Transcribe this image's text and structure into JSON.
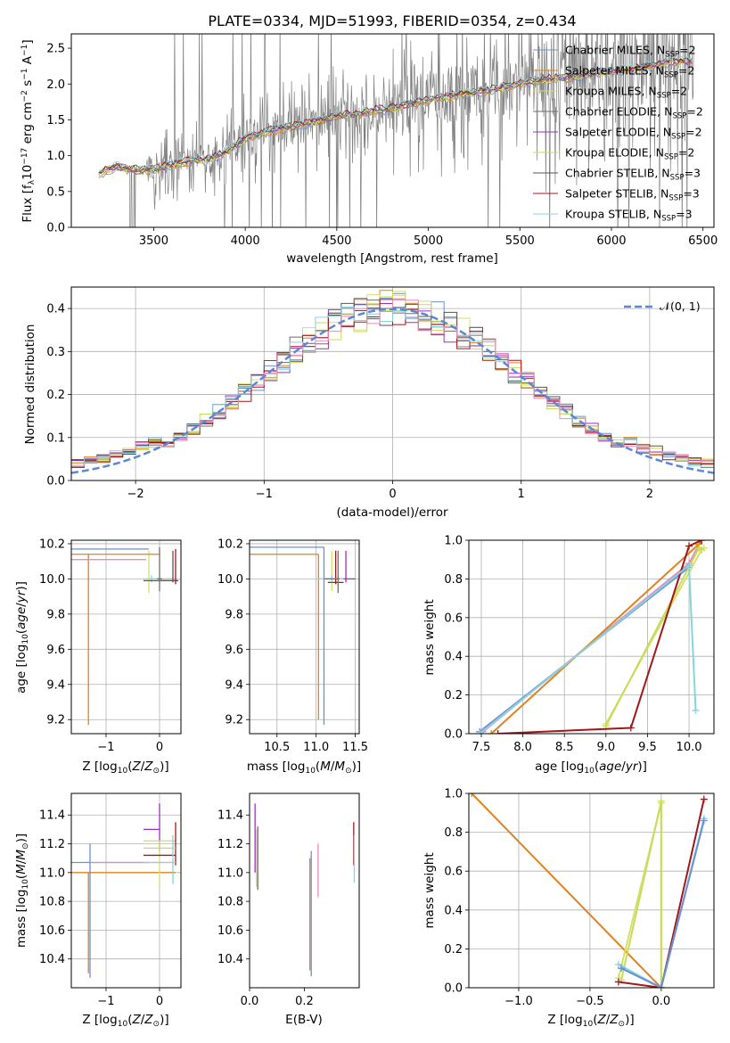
{
  "figure": {
    "title": "PLATE=0334, MJD=51993, FIBERID=0354, z=0.434"
  },
  "colors": {
    "Chabrier MILES": "#6a8fd8",
    "Salpeter MILES": "#e0821f",
    "Kroupa MILES": "#d4e06b",
    "Chabrier ELODIE": "#6e6e6e",
    "Salpeter ELODIE": "#9b30c0",
    "Kroupa ELODIE": "#c7dc58",
    "Chabrier STELIB": "#555555",
    "Salpeter STELIB": "#a01818",
    "Kroupa STELIB": "#86d4dc",
    "pink": "#e889c0",
    "data": "#7f7f7f",
    "gauss": "#5b87d6"
  },
  "chart_data": [
    {
      "id": "spectrum",
      "type": "line",
      "xlabel": "wavelength [Angstrom, rest frame]",
      "ylabel": "Flux [f_λ 10^-17 erg cm^-2 s^-1 A^-1]",
      "xlim": [
        3050,
        6560
      ],
      "ylim": [
        0,
        2.7
      ],
      "xticks": [
        3500,
        4000,
        4500,
        5000,
        5500,
        6000,
        6500
      ],
      "yticks": [
        0.0,
        0.5,
        1.0,
        1.5,
        2.0,
        2.5
      ],
      "legend_position": "top-right",
      "grid": false,
      "continuum": {
        "x": [
          3200,
          3300,
          3400,
          3500,
          3600,
          3700,
          3800,
          3900,
          4000,
          4100,
          4200,
          4300,
          4400,
          4500,
          4600,
          4700,
          4800,
          4900,
          5000,
          5100,
          5200,
          5300,
          5400,
          5500,
          5600,
          5700,
          5800,
          5900,
          6000,
          6100,
          6200,
          6300,
          6450
        ],
        "y": [
          0.75,
          0.85,
          0.8,
          0.8,
          0.88,
          0.92,
          0.95,
          1.05,
          1.25,
          1.32,
          1.38,
          1.43,
          1.48,
          1.55,
          1.58,
          1.63,
          1.66,
          1.72,
          1.78,
          1.82,
          1.87,
          1.9,
          1.95,
          2.0,
          2.05,
          2.08,
          2.1,
          2.15,
          2.18,
          2.2,
          2.25,
          2.3,
          2.32
        ]
      },
      "series": [
        {
          "name": "Chabrier MILES, N_SSP=2",
          "label_main": "Chabrier MILES, N",
          "sub": "SSP",
          "tail": "=2"
        },
        {
          "name": "Salpeter MILES, N_SSP=2",
          "label_main": "Salpeter MILES, N",
          "sub": "SSP",
          "tail": "=2"
        },
        {
          "name": "Kroupa MILES, N_SSP=2",
          "label_main": "Kroupa MILES, N",
          "sub": "SSP",
          "tail": "=2"
        },
        {
          "name": "Chabrier ELODIE, N_SSP=2",
          "label_main": "Chabrier ELODIE, N",
          "sub": "SSP",
          "tail": "=2"
        },
        {
          "name": "Salpeter ELODIE, N_SSP=2",
          "label_main": "Salpeter ELODIE, N",
          "sub": "SSP",
          "tail": "=2"
        },
        {
          "name": "Kroupa ELODIE, N_SSP=2",
          "label_main": "Kroupa ELODIE, N",
          "sub": "SSP",
          "tail": "=2"
        },
        {
          "name": "Chabrier STELIB, N_SSP=3",
          "label_main": "Chabrier STELIB, N",
          "sub": "SSP",
          "tail": "=3"
        },
        {
          "name": "Salpeter STELIB, N_SSP=3",
          "label_main": "Salpeter STELIB, N",
          "sub": "SSP",
          "tail": "=3"
        },
        {
          "name": "Kroupa STELIB, N_SSP=3",
          "label_main": "Kroupa STELIB, N",
          "sub": "SSP",
          "tail": "=3"
        }
      ]
    },
    {
      "id": "residuals",
      "type": "line",
      "xlabel": "(data-model)/error",
      "ylabel": "Normed distribution",
      "xlim": [
        -2.5,
        2.5
      ],
      "ylim": [
        0,
        0.45
      ],
      "xticks": [
        -2,
        -1,
        0,
        1,
        2
      ],
      "yticks": [
        0.0,
        0.1,
        0.2,
        0.3,
        0.4
      ],
      "grid": true,
      "legend": "𝒩(0, 1)",
      "legend_position": "top-right",
      "gaussian": {
        "mean": 0,
        "sigma": 1
      }
    },
    {
      "id": "age-vs-Z",
      "type": "scatter",
      "xlabel": "Z [log10(Z/Z⊙)]",
      "ylabel": "age [log10(age/yr)]",
      "xlim": [
        -1.65,
        0.4
      ],
      "ylim": [
        9.12,
        10.22
      ],
      "xticks": [
        -1,
        0
      ],
      "yticks": [
        9.2,
        9.4,
        9.6,
        9.8,
        10.0,
        10.2
      ],
      "grid": true
    },
    {
      "id": "age-vs-mass",
      "type": "scatter",
      "xlabel": "mass [log10(M/M⊙)]",
      "xlim": [
        10.15,
        11.55
      ],
      "ylim": [
        9.12,
        10.22
      ],
      "xticks": [
        10.5,
        11.0,
        11.5
      ],
      "yticks": [
        9.2,
        9.4,
        9.6,
        9.8,
        10.0,
        10.2
      ],
      "grid": true
    },
    {
      "id": "weight-vs-age",
      "type": "line",
      "xlabel": "age [log10(age/yr)]",
      "ylabel": "mass weight",
      "xlim": [
        7.35,
        10.3
      ],
      "ylim": [
        0.0,
        1.0
      ],
      "xticks": [
        7.5,
        8.0,
        8.5,
        9.0,
        9.5,
        10.0
      ],
      "yticks": [
        0.0,
        0.2,
        0.4,
        0.6,
        0.8,
        1.0
      ],
      "grid": true,
      "series": [
        {
          "color": "#6a8fd8",
          "x": [
            7.48,
            10.0,
            10.15
          ],
          "y": [
            0.01,
            0.86,
            1.0
          ]
        },
        {
          "color": "#e889c0",
          "x": [
            7.52,
            10.0,
            10.15
          ],
          "y": [
            0.01,
            0.88,
            1.0
          ]
        },
        {
          "color": "#e0821f",
          "x": [
            7.62,
            10.12,
            10.15
          ],
          "y": [
            0.0,
            0.98,
            1.0
          ]
        },
        {
          "color": "#d4e06b",
          "x": [
            9.0,
            10.15,
            10.18
          ],
          "y": [
            0.05,
            0.95,
            0.96
          ]
        },
        {
          "color": "#c7dc58",
          "x": [
            9.0,
            10.12,
            10.15
          ],
          "y": [
            0.04,
            0.96,
            0.95
          ]
        },
        {
          "color": "#a01818",
          "x": [
            7.7,
            9.3,
            10.0,
            10.15
          ],
          "y": [
            0.0,
            0.03,
            0.97,
            1.0
          ]
        },
        {
          "color": "#86d4dc",
          "x": [
            7.48,
            10.0,
            10.08
          ],
          "y": [
            0.0,
            0.87,
            0.12
          ]
        }
      ]
    },
    {
      "id": "mass-vs-Z",
      "type": "scatter",
      "xlabel": "Z [log10(Z/Z⊙)]",
      "ylabel": "mass [log10(M/M⊙)]",
      "xlim": [
        -1.65,
        0.4
      ],
      "ylim": [
        10.2,
        11.55
      ],
      "xticks": [
        -1,
        0
      ],
      "yticks": [
        10.4,
        10.6,
        10.8,
        11.0,
        11.2,
        11.4
      ],
      "grid": true
    },
    {
      "id": "mass-vs-ebv",
      "type": "scatter",
      "xlabel": "E(B-V)",
      "xlim": [
        0.0,
        0.4
      ],
      "ylim": [
        10.2,
        11.55
      ],
      "xticks": [
        0.0,
        0.2
      ],
      "yticks": [
        10.4,
        10.6,
        10.8,
        11.0,
        11.2,
        11.4
      ],
      "grid": false
    },
    {
      "id": "weight-vs-Z",
      "type": "line",
      "xlabel": "Z [log10(Z/Z⊙)]",
      "ylabel": "mass weight",
      "xlim": [
        -1.35,
        0.37
      ],
      "ylim": [
        0.0,
        1.0
      ],
      "xticks": [
        -1.0,
        -0.5,
        0.0
      ],
      "yticks": [
        0.0,
        0.2,
        0.4,
        0.6,
        0.8,
        1.0
      ],
      "grid": true,
      "series": [
        {
          "color": "#e0821f",
          "x": [
            -1.33,
            0.0
          ],
          "y": [
            1.0,
            0.0
          ]
        },
        {
          "color": "#d4e06b",
          "x": [
            -0.3,
            0.0,
            0.0
          ],
          "y": [
            0.05,
            0.95,
            0.0
          ]
        },
        {
          "color": "#c7dc58",
          "x": [
            -0.28,
            0.0,
            0.0
          ],
          "y": [
            0.04,
            0.96,
            0.0
          ]
        },
        {
          "color": "#a01818",
          "x": [
            -0.3,
            0.0,
            0.3
          ],
          "y": [
            0.03,
            0.0,
            0.97
          ]
        },
        {
          "color": "#86d4dc",
          "x": [
            -0.3,
            0.0,
            0.3
          ],
          "y": [
            0.12,
            0.0,
            0.87
          ]
        },
        {
          "color": "#6a8fd8",
          "x": [
            -0.28,
            0.0,
            0.3
          ],
          "y": [
            0.1,
            0.0,
            0.86
          ]
        }
      ]
    }
  ]
}
